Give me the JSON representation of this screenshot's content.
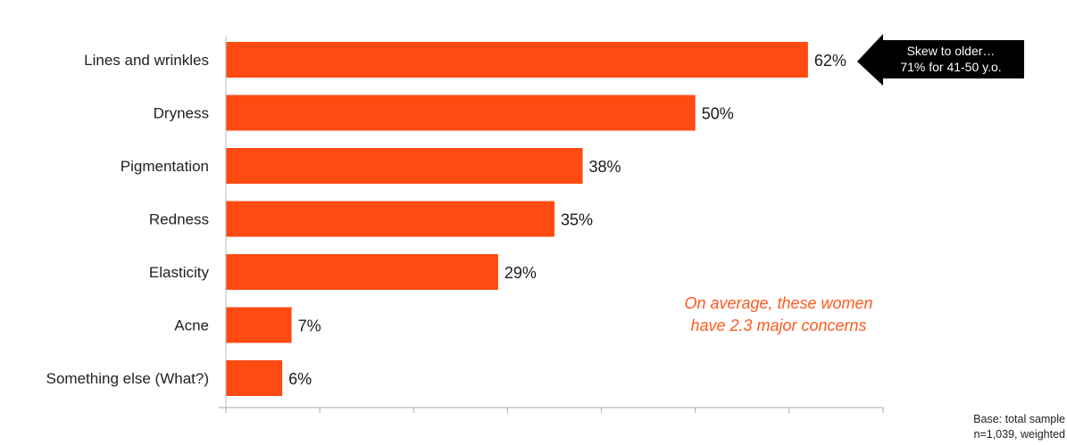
{
  "chart_data": {
    "type": "bar",
    "orientation": "horizontal",
    "categories": [
      "Lines and wrinkles",
      "Dryness",
      "Pigmentation",
      "Redness",
      "Elasticity",
      "Acne",
      "Something else (What?)"
    ],
    "values": [
      62,
      50,
      38,
      35,
      29,
      7,
      6
    ],
    "value_labels": [
      "62%",
      "50%",
      "38%",
      "35%",
      "29%",
      "7%",
      "6%"
    ],
    "unit": "%",
    "xlim": [
      0,
      70
    ],
    "x_tick_count": 8,
    "grid": false,
    "bar_color": "#ff4a12",
    "annotation_color": "#ff5a1f",
    "callout_color": "#000000",
    "callout": {
      "lines": [
        "Skew to older…",
        "71% for 41-50 y.o."
      ],
      "target": "Lines and wrinkles"
    },
    "annotation": {
      "lines": [
        "On average, these women",
        "have 2.3 major concerns"
      ]
    },
    "base_note": {
      "lines": [
        "Base: total sample",
        "n=1,039, weighted"
      ]
    }
  }
}
